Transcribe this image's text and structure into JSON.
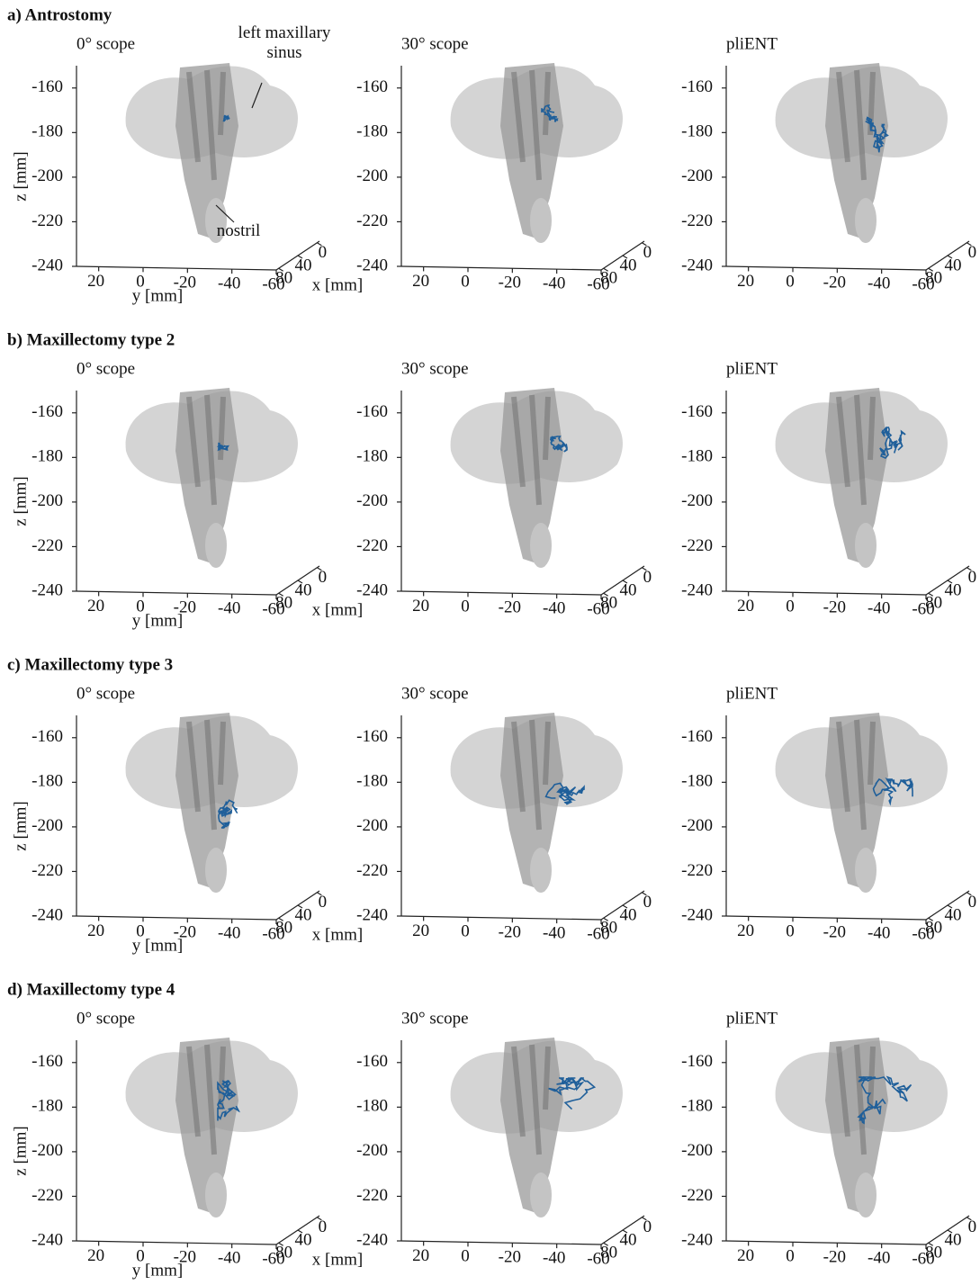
{
  "figure_rows": [
    "a) Antrostomy",
    "b) Maxillectomy type 2",
    "c) Maxillectomy type 3",
    "d) Maxillectomy type 4"
  ],
  "chart_data": [
    {
      "type": "line3d",
      "title": "0° scope",
      "zlabel": "z [mm]",
      "ylabel": "y [mm]",
      "xlabel": "x [mm]",
      "zlim": [
        -240,
        -150
      ],
      "zticks": [
        -160,
        -180,
        -200,
        -220,
        -240
      ],
      "ylim": [
        30,
        -60
      ],
      "yticks": [
        20,
        0,
        -20,
        -40,
        -60
      ],
      "xlim": [
        85,
        -5
      ],
      "xticks": [
        80,
        40,
        0
      ],
      "color": "#1f5f9a",
      "annotations": [
        "left maxillary sinus",
        "nostril"
      ]
    },
    {
      "type": "line3d",
      "title": "30° scope",
      "zlim": [
        -240,
        -150
      ],
      "zticks": [
        -160,
        -180,
        -200,
        -220,
        -240
      ],
      "ylim": [
        30,
        -60
      ],
      "yticks": [
        20,
        0,
        -20,
        -40,
        -60
      ],
      "xlim": [
        85,
        -5
      ],
      "xticks": [
        80,
        40,
        0
      ],
      "color": "#1f5f9a"
    },
    {
      "type": "line3d",
      "title": "pliENT",
      "zlim": [
        -240,
        -150
      ],
      "zticks": [
        -160,
        -180,
        -200,
        -220,
        -240
      ],
      "ylim": [
        30,
        -60
      ],
      "yticks": [
        20,
        0,
        -20,
        -40,
        -60
      ],
      "xlim": [
        85,
        -5
      ],
      "xticks": [
        80,
        40,
        0
      ],
      "color": "#1f5f9a"
    },
    {
      "type": "line3d",
      "title": "0° scope",
      "zlabel": "z [mm]",
      "ylabel": "y [mm]",
      "xlabel": "x [mm]",
      "zlim": [
        -240,
        -150
      ],
      "zticks": [
        -160,
        -180,
        -200,
        -220,
        -240
      ],
      "ylim": [
        30,
        -60
      ],
      "yticks": [
        20,
        0,
        -20,
        -40,
        -60
      ],
      "xlim": [
        85,
        -5
      ],
      "xticks": [
        80,
        40,
        0
      ],
      "color": "#1f5f9a"
    },
    {
      "type": "line3d",
      "title": "30° scope",
      "zlim": [
        -240,
        -150
      ],
      "zticks": [
        -160,
        -180,
        -200,
        -220,
        -240
      ],
      "ylim": [
        30,
        -60
      ],
      "yticks": [
        20,
        0,
        -20,
        -40,
        -60
      ],
      "xlim": [
        85,
        -5
      ],
      "xticks": [
        80,
        40,
        0
      ],
      "color": "#1f5f9a"
    },
    {
      "type": "line3d",
      "title": "pliENT",
      "zlim": [
        -240,
        -150
      ],
      "zticks": [
        -160,
        -180,
        -200,
        -220,
        -240
      ],
      "ylim": [
        30,
        -60
      ],
      "yticks": [
        20,
        0,
        -20,
        -40,
        -60
      ],
      "xlim": [
        85,
        -5
      ],
      "xticks": [
        80,
        40,
        0
      ],
      "color": "#1f5f9a"
    },
    {
      "type": "line3d",
      "title": "0° scope",
      "zlabel": "z [mm]",
      "ylabel": "y [mm]",
      "xlabel": "x [mm]",
      "zlim": [
        -240,
        -150
      ],
      "zticks": [
        -160,
        -180,
        -200,
        -220,
        -240
      ],
      "ylim": [
        30,
        -60
      ],
      "yticks": [
        20,
        0,
        -20,
        -40,
        -60
      ],
      "xlim": [
        85,
        -5
      ],
      "xticks": [
        80,
        40,
        0
      ],
      "color": "#1f5f9a"
    },
    {
      "type": "line3d",
      "title": "30° scope",
      "zlim": [
        -240,
        -150
      ],
      "zticks": [
        -160,
        -180,
        -200,
        -220,
        -240
      ],
      "ylim": [
        30,
        -60
      ],
      "yticks": [
        20,
        0,
        -20,
        -40,
        -60
      ],
      "xlim": [
        85,
        -5
      ],
      "xticks": [
        80,
        40,
        0
      ],
      "color": "#1f5f9a"
    },
    {
      "type": "line3d",
      "title": "pliENT",
      "zlim": [
        -240,
        -150
      ],
      "zticks": [
        -160,
        -180,
        -200,
        -220,
        -240
      ],
      "ylim": [
        30,
        -60
      ],
      "yticks": [
        20,
        0,
        -20,
        -40,
        -60
      ],
      "xlim": [
        85,
        -5
      ],
      "xticks": [
        80,
        40,
        0
      ],
      "color": "#1f5f9a"
    },
    {
      "type": "line3d",
      "title": "0° scope",
      "zlabel": "z [mm]",
      "ylabel": "y [mm]",
      "xlabel": "x [mm]",
      "zlim": [
        -240,
        -150
      ],
      "zticks": [
        -160,
        -180,
        -200,
        -220,
        -240
      ],
      "ylim": [
        30,
        -60
      ],
      "yticks": [
        20,
        0,
        -20,
        -40,
        -60
      ],
      "xlim": [
        85,
        -5
      ],
      "xticks": [
        80,
        40,
        0
      ],
      "color": "#1f5f9a"
    },
    {
      "type": "line3d",
      "title": "30° scope",
      "zlim": [
        -240,
        -150
      ],
      "zticks": [
        -160,
        -180,
        -200,
        -220,
        -240
      ],
      "ylim": [
        30,
        -60
      ],
      "yticks": [
        20,
        0,
        -20,
        -40,
        -60
      ],
      "xlim": [
        85,
        -5
      ],
      "xticks": [
        80,
        40,
        0
      ],
      "color": "#1f5f9a"
    },
    {
      "type": "line3d",
      "title": "pliENT",
      "zlim": [
        -240,
        -150
      ],
      "zticks": [
        -160,
        -180,
        -200,
        -220,
        -240
      ],
      "ylim": [
        30,
        -60
      ],
      "yticks": [
        20,
        0,
        -20,
        -40,
        -60
      ],
      "xlim": [
        85,
        -5
      ],
      "xticks": [
        80,
        40,
        0
      ],
      "color": "#1f5f9a"
    }
  ]
}
